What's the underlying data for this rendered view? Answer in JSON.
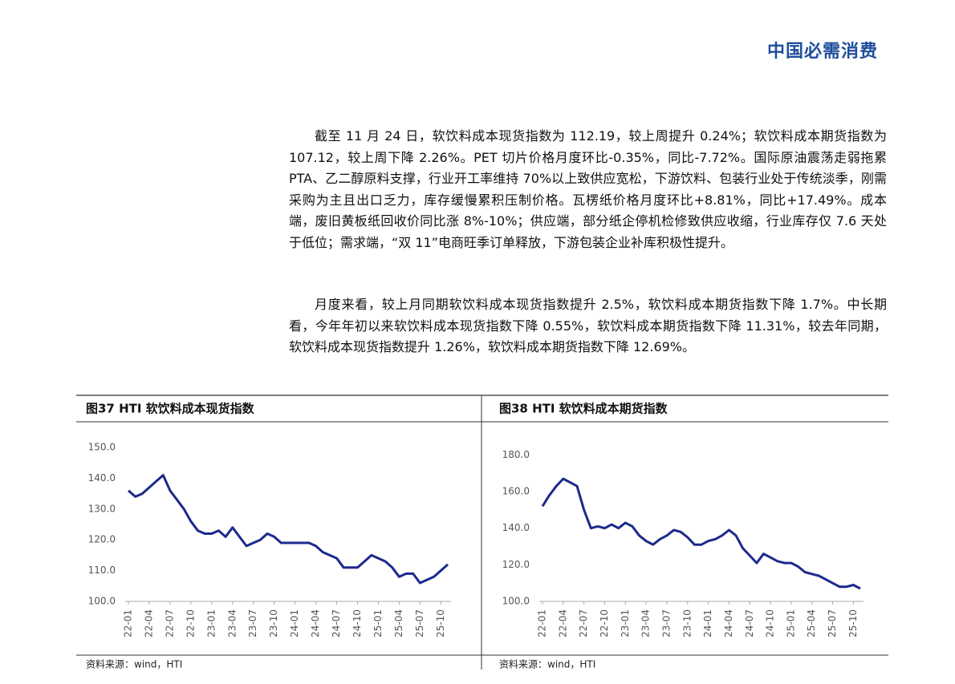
{
  "header": {
    "title": "中国必需消费"
  },
  "paragraphs": [
    "截至 11 月 24 日，软饮料成本现货指数为 112.19，较上周提升 0.24%；软饮料成本期货指数为 107.12，较上周下降 2.26%。PET 切片价格月度环比-0.35%，同比-7.72%。国际原油震荡走弱拖累 PTA、乙二醇原料支撑，行业开工率维持 70%以上致供应宽松，下游饮料、包装行业处于传统淡季，刚需采购为主且出口乏力，库存缓慢累积压制价格。瓦楞纸价格月度环比+8.81%，同比+17.49%。成本端，废旧黄板纸回收价同比涨 8%-10%；供应端，部分纸企停机检修致供应收缩，行业库存仅 7.6 天处于低位；需求端，“双 11”电商旺季订单释放，下游包装企业补库积极性提升。",
    "月度来看，较上月同期软饮料成本现货指数提升 2.5%，软饮料成本期货指数下降 1.7%。中长期看，今年年初以来软饮料成本现货指数下降 0.55%，软饮料成本期货指数下降 11.31%，较去年同期，软饮料成本现货指数提升 1.26%，软饮料成本期货指数下降 12.69%。"
  ],
  "chart_data": [
    {
      "type": "line",
      "title": "图37 HTI 软饮料成本现货指数",
      "source": "资料来源：wind，HTI",
      "color": "#1c2a8c",
      "categories": [
        "22-01",
        null,
        null,
        "22-04",
        null,
        null,
        "22-07",
        null,
        null,
        "22-10",
        null,
        null,
        "23-01",
        null,
        null,
        "23-04",
        null,
        null,
        "23-07",
        null,
        null,
        "23-10",
        null,
        null,
        "24-01",
        null,
        null,
        "24-04",
        null,
        null,
        "24-07",
        null,
        null,
        "24-10",
        null,
        null,
        "25-01",
        null,
        null,
        "25-04",
        null,
        null,
        "25-07",
        null,
        null,
        "25-10",
        null
      ],
      "values": [
        136,
        134,
        135,
        137,
        139,
        141,
        136,
        133,
        130,
        126,
        123,
        122,
        122,
        123,
        121,
        124,
        121,
        118,
        119,
        120,
        122,
        121,
        119,
        119,
        119,
        119,
        119,
        118,
        116,
        115,
        114,
        111,
        111,
        111,
        113,
        115,
        114,
        113,
        111,
        108,
        109,
        109,
        106,
        107,
        108,
        110,
        112
      ],
      "ylim": [
        100,
        150
      ],
      "yticks": [
        {
          "value": 100,
          "label": "100.0"
        },
        {
          "value": 110,
          "label": "110.0"
        },
        {
          "value": 120,
          "label": "120.0"
        },
        {
          "value": 130,
          "label": "130.0"
        },
        {
          "value": 140,
          "label": "140.0"
        },
        {
          "value": 150,
          "label": "150.0"
        }
      ]
    },
    {
      "type": "line",
      "title": "图38 HTI 软饮料成本期货指数",
      "source": "资料来源：wind，HTI",
      "color": "#1c2a8c",
      "categories": [
        "22-01",
        null,
        null,
        "22-04",
        null,
        null,
        "22-07",
        null,
        null,
        "22-10",
        null,
        null,
        "23-01",
        null,
        null,
        "23-04",
        null,
        null,
        "23-07",
        null,
        null,
        "23-10",
        null,
        null,
        "24-01",
        null,
        null,
        "24-04",
        null,
        null,
        "24-07",
        null,
        null,
        "24-10",
        null,
        null,
        "25-01",
        null,
        null,
        "25-04",
        null,
        null,
        "25-07",
        null,
        null,
        "25-10",
        null
      ],
      "values": [
        152,
        158,
        163,
        167,
        165,
        163,
        150,
        140,
        141,
        140,
        142,
        140,
        143,
        141,
        136,
        133,
        131,
        134,
        136,
        139,
        138,
        135,
        131,
        131,
        133,
        134,
        136,
        139,
        136,
        129,
        125,
        121,
        126,
        124,
        122,
        121,
        121,
        119,
        116,
        115,
        114,
        112,
        110,
        108,
        108,
        109,
        107
      ],
      "ylim": [
        100,
        185
      ],
      "yticks": [
        {
          "value": 100,
          "label": "100.0"
        },
        {
          "value": 120,
          "label": "120.0"
        },
        {
          "value": 140,
          "label": "140.0"
        },
        {
          "value": 160,
          "label": "160.0"
        },
        {
          "value": 180,
          "label": "180.0"
        }
      ]
    }
  ]
}
